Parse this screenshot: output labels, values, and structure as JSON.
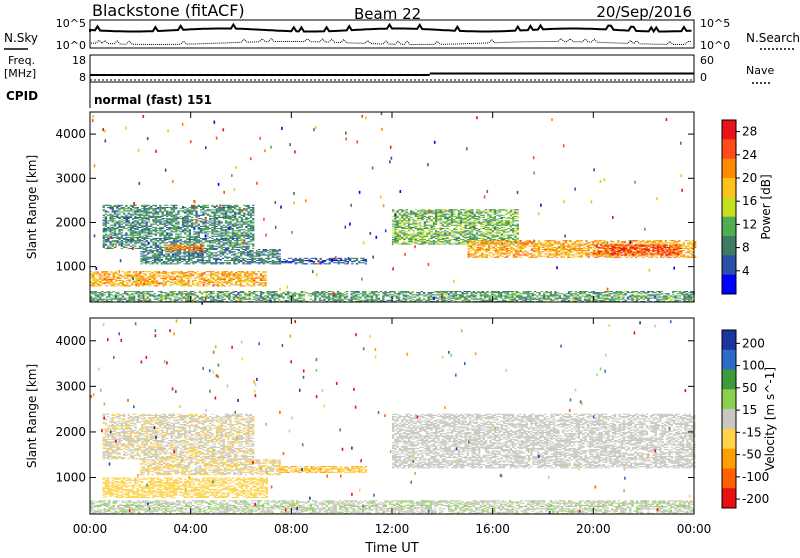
{
  "header": {
    "station": "Blackstone (fitACF)",
    "beam": "Beam 22",
    "date": "20/Sep/2016"
  },
  "nsky_panel": {
    "left_label": "N.Sky",
    "right_label": "N.Search",
    "left_ticks": [
      "10^5",
      "10^0"
    ],
    "right_ticks": [
      "10^5",
      "10^0"
    ]
  },
  "freq_panel": {
    "left_label_top": "Freq.",
    "left_label_bottom": "[MHz]",
    "left_ticks": [
      "18",
      "8"
    ],
    "right_ticks": [
      "60",
      "0"
    ],
    "right_label": "Nave",
    "cpid_label": "CPID",
    "cpid_value": "normal (fast) 151"
  },
  "colors": {
    "power_scale": [
      "#0000ff",
      "#2a4fa8",
      "#3c7c62",
      "#4fae52",
      "#c6e020",
      "#ffc21a",
      "#ff8a00",
      "#ff4a1a",
      "#e8141a"
    ],
    "velocity_scale": [
      "#e81010",
      "#ff6000",
      "#ffa000",
      "#ffd24a",
      "#c8c8c0",
      "#8cd050",
      "#3c9c3c",
      "#2c6cc8",
      "#1c34a0"
    ],
    "ground_scatter": "#c8c8c0"
  },
  "chart_data": [
    {
      "type": "heatmap",
      "title": "",
      "xlabel": "Time UT",
      "ylabel": "Slant Range [km]",
      "xlim": [
        0,
        24
      ],
      "ylim": [
        200,
        4500
      ],
      "x_ticks": [
        "00:00",
        "04:00",
        "08:00",
        "12:00",
        "16:00",
        "20:00",
        "00:00"
      ],
      "y_ticks": [
        "1000",
        "2000",
        "3000",
        "4000"
      ],
      "colorbar_label": "Power [dB]",
      "colorbar_ticks": [
        "4",
        "8",
        "12",
        "16",
        "20",
        "24",
        "28"
      ],
      "colorbar_range": [
        0,
        30
      ],
      "bands": [
        {
          "x0": 0.0,
          "x1": 7.0,
          "y0": 550,
          "y1": 900,
          "value": 20
        },
        {
          "x0": 2.0,
          "x1": 7.5,
          "y0": 1050,
          "y1": 1400,
          "value": 8
        },
        {
          "x0": 0.5,
          "x1": 6.5,
          "y0": 1400,
          "y1": 2400,
          "value": 9
        },
        {
          "x0": 3.0,
          "x1": 4.5,
          "y0": 1350,
          "y1": 1500,
          "value": 22
        },
        {
          "x0": 7.5,
          "x1": 11.0,
          "y0": 1050,
          "y1": 1200,
          "value": 6
        },
        {
          "x0": 12.0,
          "x1": 17.0,
          "y0": 1500,
          "y1": 2300,
          "value": 12
        },
        {
          "x0": 15.0,
          "x1": 24.0,
          "y0": 1200,
          "y1": 1600,
          "value": 20
        },
        {
          "x0": 20.0,
          "x1": 23.5,
          "y0": 1250,
          "y1": 1500,
          "value": 26
        },
        {
          "x0": 0.0,
          "x1": 24.0,
          "y0": 200,
          "y1": 450,
          "value": 10
        }
      ]
    },
    {
      "type": "heatmap",
      "title": "",
      "xlabel": "Time UT",
      "ylabel": "Slant Range [km]",
      "xlim": [
        0,
        24
      ],
      "ylim": [
        200,
        4500
      ],
      "x_ticks": [
        "00:00",
        "04:00",
        "08:00",
        "12:00",
        "16:00",
        "20:00",
        "00:00"
      ],
      "y_ticks": [
        "1000",
        "2000",
        "3000",
        "4000"
      ],
      "colorbar_label": "Velocity [m s^-1]",
      "colorbar_ticks": [
        "200",
        "100",
        "50",
        "15",
        "-15",
        "-50",
        "-100",
        "-200"
      ],
      "colorbar_range": [
        -250,
        250
      ],
      "bands": [
        {
          "x0": 0.5,
          "x1": 7.0,
          "y0": 550,
          "y1": 1000,
          "value": -60
        },
        {
          "x0": 2.0,
          "x1": 7.5,
          "y0": 1050,
          "y1": 1400,
          "value": -30
        },
        {
          "x0": 0.5,
          "x1": 6.5,
          "y0": 1400,
          "y1": 2400,
          "value": -20
        },
        {
          "x0": 7.5,
          "x1": 11.0,
          "y0": 1100,
          "y1": 1250,
          "value": -80
        },
        {
          "x0": 12.0,
          "x1": 24.0,
          "y0": 1200,
          "y1": 2400,
          "value": 0
        },
        {
          "x0": 0.0,
          "x1": 24.0,
          "y0": 200,
          "y1": 500,
          "value": 20
        }
      ]
    }
  ]
}
